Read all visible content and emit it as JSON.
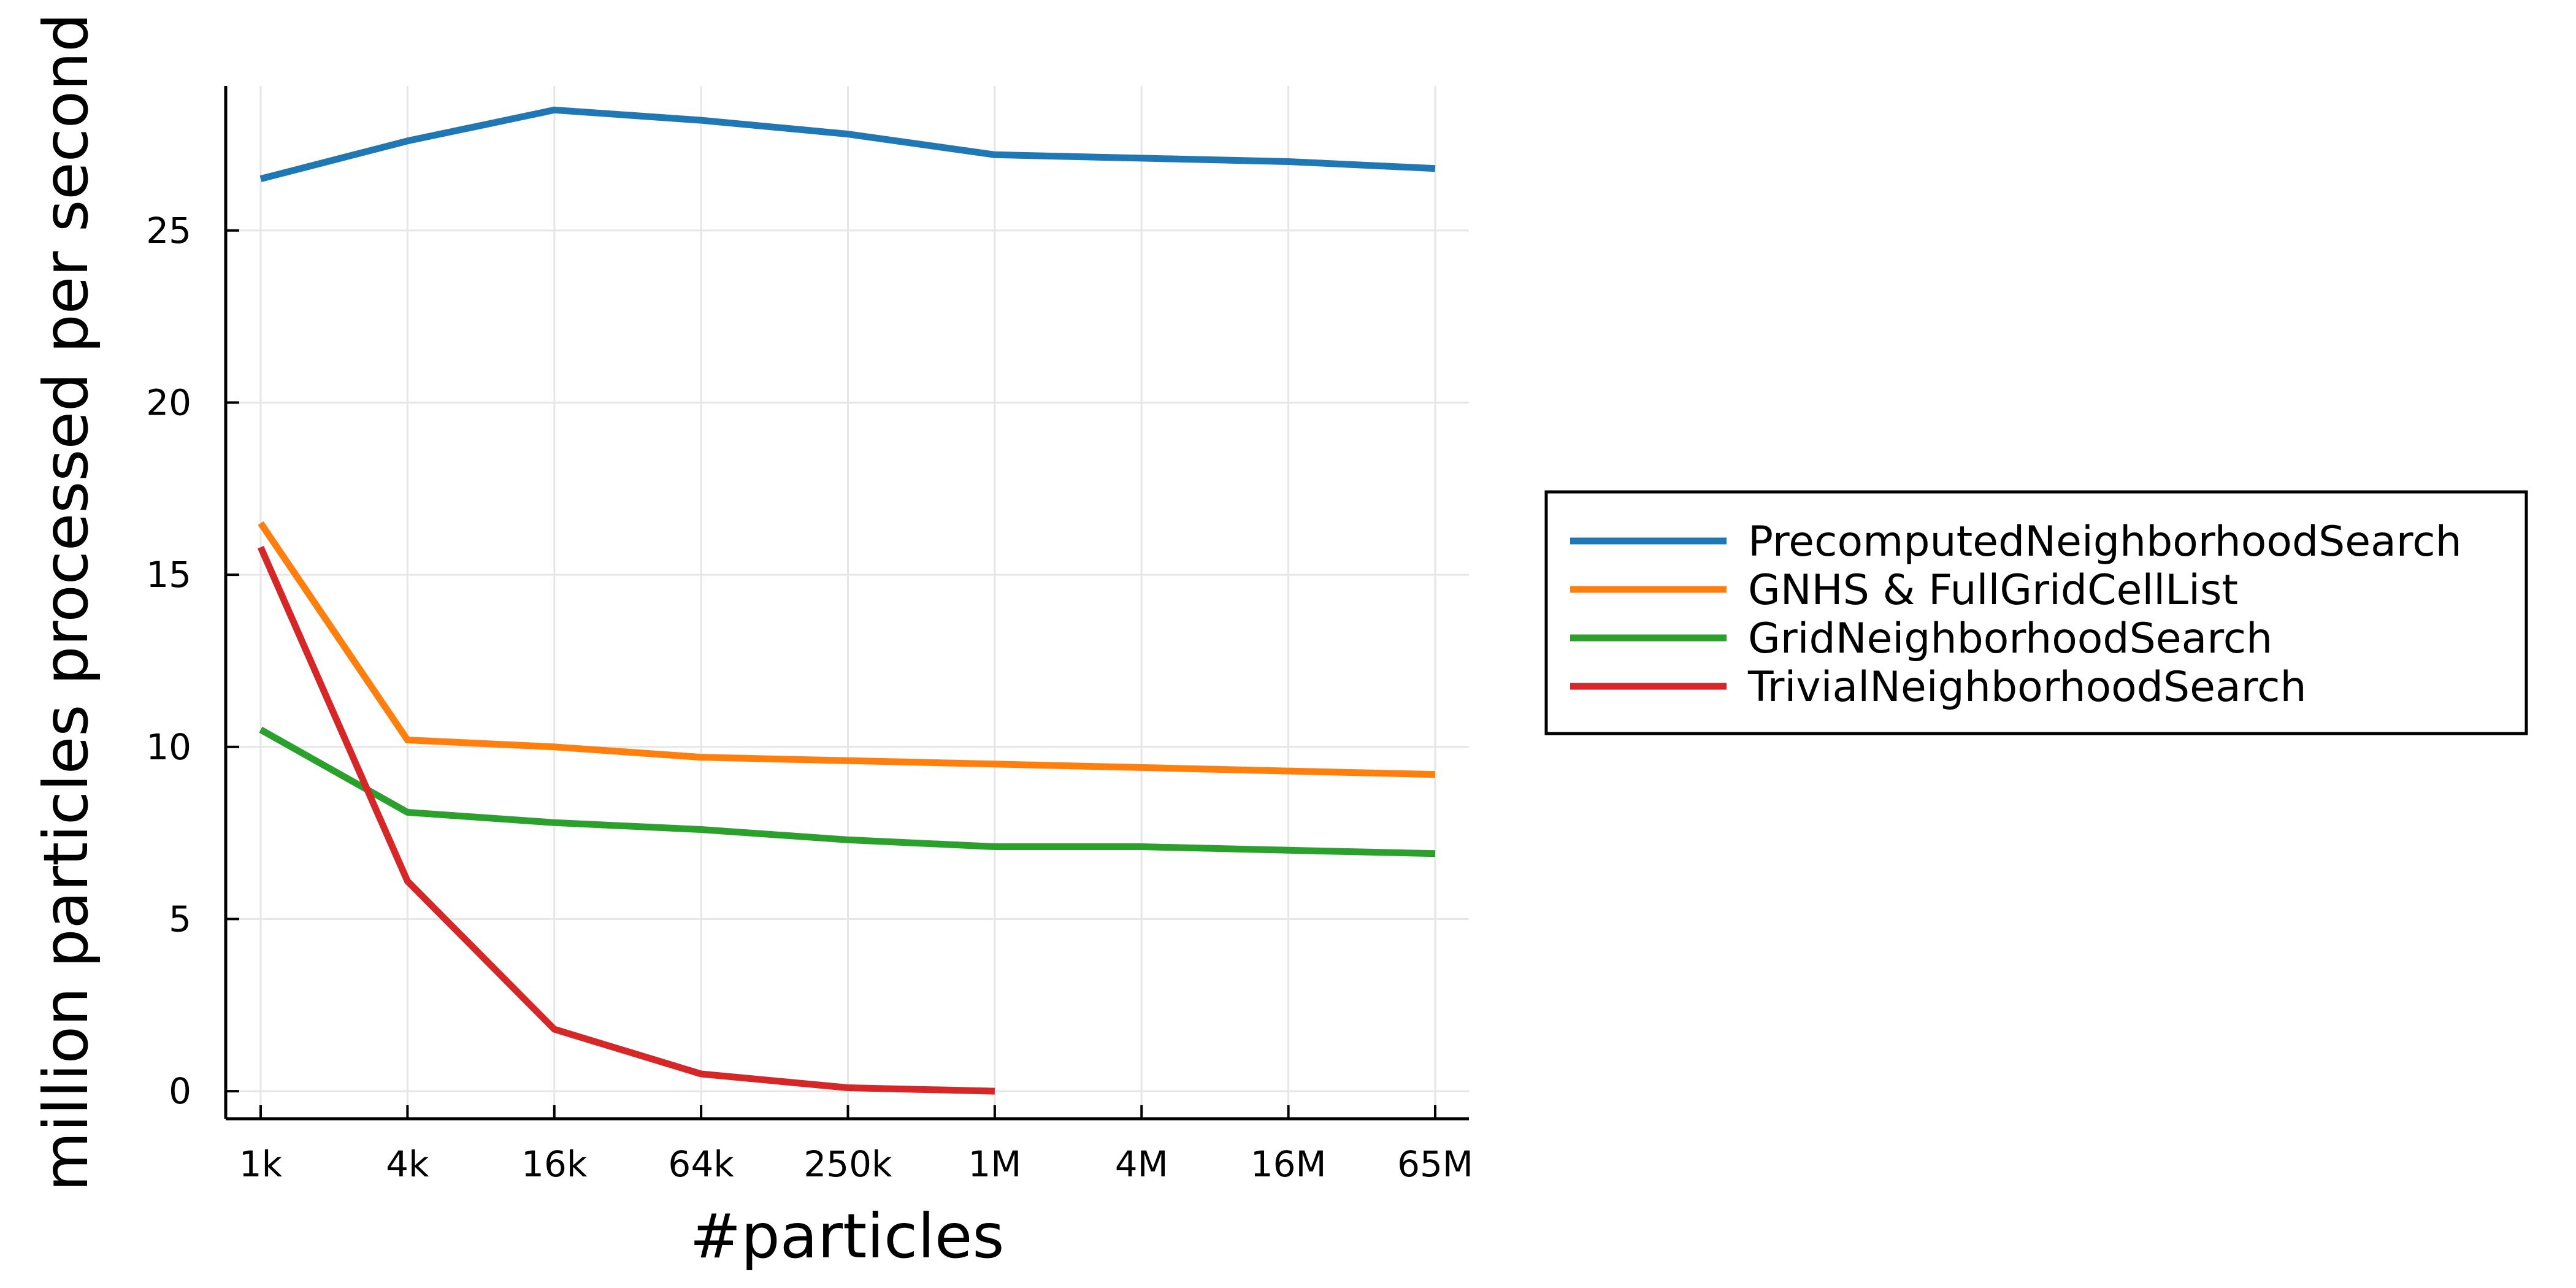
{
  "chart_data": {
    "type": "line",
    "xlabel": "#particles",
    "ylabel": "million particles processed per second",
    "categories": [
      "1k",
      "4k",
      "16k",
      "64k",
      "250k",
      "1M",
      "4M",
      "16M",
      "65M"
    ],
    "y_ticks": [
      0,
      5,
      10,
      15,
      20,
      25
    ],
    "ylim": [
      -0.8,
      29.2
    ],
    "grid": true,
    "legend_position": "right",
    "series": [
      {
        "name": "PrecomputedNeighborhoodSearch",
        "color": "#1f77b4",
        "values": [
          26.5,
          27.6,
          28.5,
          28.2,
          27.8,
          27.2,
          27.1,
          27.0,
          26.8
        ]
      },
      {
        "name": "GNHS & FullGridCellList",
        "color": "#ff7f0e",
        "values": [
          16.5,
          10.2,
          10.0,
          9.7,
          9.6,
          9.5,
          9.4,
          9.3,
          9.2
        ]
      },
      {
        "name": "GridNeighborhoodSearch",
        "color": "#2ca02c",
        "values": [
          10.5,
          8.1,
          7.8,
          7.6,
          7.3,
          7.1,
          7.1,
          7.0,
          6.9
        ]
      },
      {
        "name": "TrivialNeighborhoodSearch",
        "color": "#d62728",
        "values": [
          15.8,
          6.1,
          1.8,
          0.5,
          0.1,
          0.0,
          null,
          null,
          null
        ]
      }
    ]
  }
}
